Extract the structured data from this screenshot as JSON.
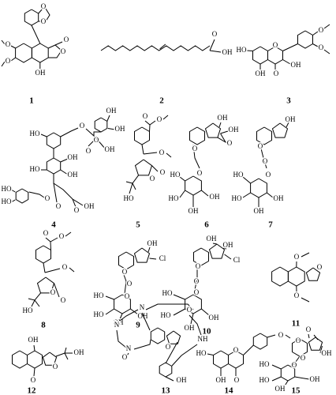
{
  "compounds": [
    {
      "number": "1",
      "labels": [
        "O",
        "O",
        "O",
        "O",
        "O",
        "O",
        "OH"
      ]
    },
    {
      "number": "2",
      "labels": [
        "O",
        "OH"
      ]
    },
    {
      "number": "3",
      "labels": [
        "HO",
        "O",
        "O",
        "O",
        "OH",
        "OH",
        "O"
      ]
    },
    {
      "number": "4",
      "labels": [
        "OH",
        "OH",
        "HO",
        "O",
        "O",
        "OH",
        "O",
        "HO",
        "OH",
        "HO",
        "HO",
        "O",
        "O",
        "OH",
        "O",
        "OH"
      ]
    },
    {
      "number": "5",
      "labels": [
        "O",
        "O",
        "O",
        "O",
        "O",
        "HO"
      ]
    },
    {
      "number": "6",
      "labels": [
        "OH",
        "OH",
        "O",
        "O",
        "HO",
        "O",
        "HO",
        "OH",
        "OH"
      ]
    },
    {
      "number": "7",
      "labels": [
        "OH",
        "O",
        "O",
        "HO",
        "O",
        "HO",
        "OH",
        "OH"
      ]
    },
    {
      "number": "8",
      "labels": [
        "O",
        "O",
        "O",
        "O",
        "O",
        "HO"
      ]
    },
    {
      "number": "9",
      "labels": [
        "OH",
        "Cl",
        "O",
        "O",
        "HO",
        "O",
        "HO",
        "OH",
        "OH"
      ]
    },
    {
      "number": "10",
      "labels": [
        "OH",
        "OH",
        "Cl",
        "O",
        "O",
        "HO",
        "O",
        "HO",
        "OH",
        "OH"
      ]
    },
    {
      "number": "11",
      "labels": [
        "O",
        "O",
        "O"
      ]
    },
    {
      "number": "12",
      "labels": [
        "OH",
        "O",
        "OH",
        "O"
      ]
    },
    {
      "number": "13",
      "labels": [
        "N",
        "N",
        "N",
        "O",
        "O",
        "NH",
        "O",
        "OH"
      ]
    },
    {
      "number": "14",
      "labels": [
        "HO",
        "O",
        "O",
        "OH",
        "O"
      ]
    },
    {
      "number": "15",
      "labels": [
        "O",
        "O",
        "OH",
        "O",
        "HO",
        "O",
        "HO",
        "OH",
        "OH"
      ]
    }
  ]
}
